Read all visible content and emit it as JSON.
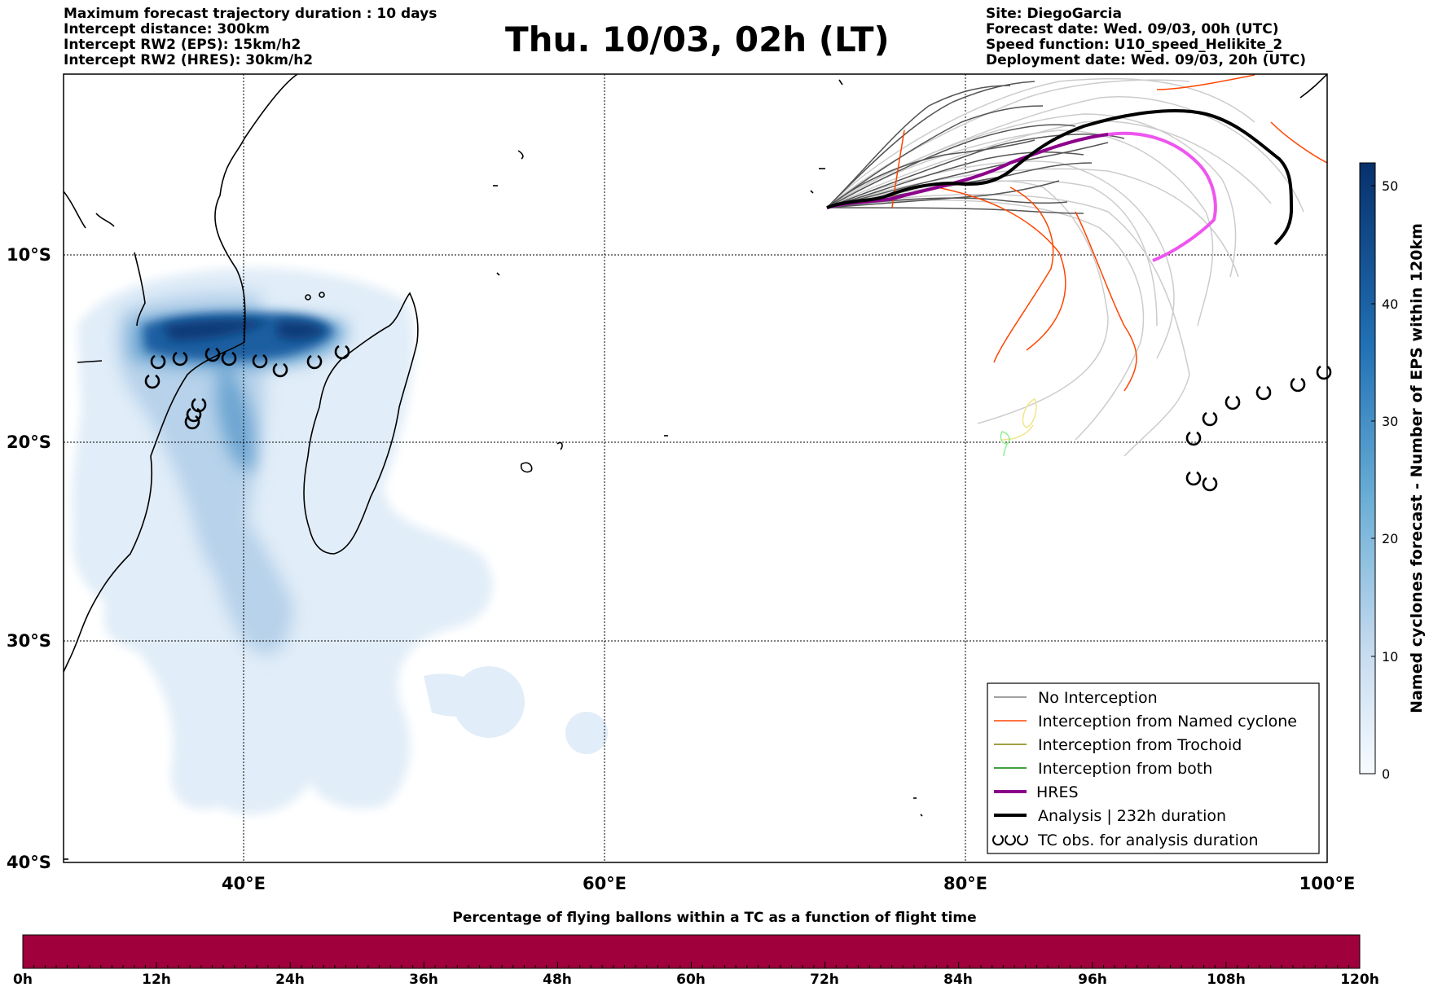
{
  "header_left": [
    "Maximum forecast trajectory duration : 10 days",
    "Intercept distance: 300km",
    "Intercept RW2 (EPS):  15km/h2",
    "Intercept RW2 (HRES): 30km/h2"
  ],
  "title": "Thu. 10/03, 02h (LT)",
  "header_right": [
    "Site: DiegoGarcia",
    "Forecast date: Wed. 09/03, 00h (UTC)",
    "Speed function: U10_speed_Helikite_2",
    "Deployment date: Wed. 09/03, 20h (UTC)"
  ],
  "map": {
    "lon_ticks": [
      "40°E",
      "60°E",
      "80°E",
      "100°E"
    ],
    "lat_ticks": [
      "10°S",
      "20°S",
      "30°S",
      "40°S"
    ],
    "lon_range": [
      30,
      100
    ],
    "lat_range": [
      -40,
      1
    ],
    "density_color": "#08306b"
  },
  "legend": {
    "items": [
      {
        "label": "No Interception",
        "color": "#808080",
        "kind": "line-thin"
      },
      {
        "label": "Interception from Named cyclone",
        "color": "#ff4500",
        "kind": "line-thin"
      },
      {
        "label": "Interception from Trochoid",
        "color": "#808000",
        "kind": "line-thin"
      },
      {
        "label": "Interception from both",
        "color": "#008000",
        "kind": "line-thin"
      },
      {
        "label": "HRES",
        "color": "#8b008b",
        "kind": "line-thick"
      },
      {
        "label": "Analysis | 232h duration",
        "color": "#000000",
        "kind": "line-thick"
      },
      {
        "label": "TC obs. for analysis duration",
        "color": "#000000",
        "kind": "tc-symbol"
      }
    ]
  },
  "colorbar": {
    "label": "Named cyclones forecast - Number of EPS within 120km",
    "ticks": [
      "0",
      "10",
      "20",
      "30",
      "40",
      "50"
    ],
    "min": 0,
    "max": 52
  },
  "bottom_bar": {
    "title": "Percentage of flying ballons within a TC as a function of flight time",
    "ticks": [
      "0h",
      "12h",
      "24h",
      "36h",
      "48h",
      "60h",
      "72h",
      "84h",
      "96h",
      "108h",
      "120h"
    ],
    "color": "#a0003c"
  }
}
